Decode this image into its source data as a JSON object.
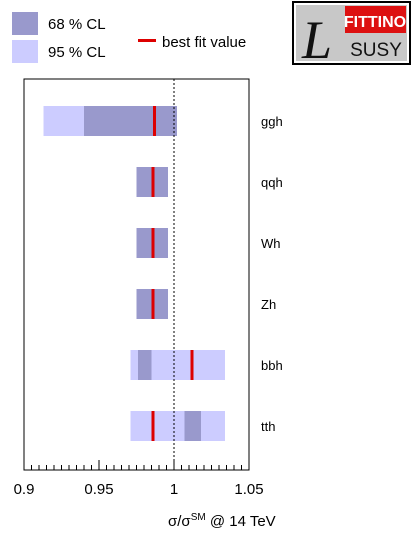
{
  "legend": {
    "cl68_label": "68 % CL",
    "cl95_label": "95 % CL",
    "bestfit_label": "best fit value",
    "position": "top-left, outside plot"
  },
  "logo": {
    "top_text": "FITTINO",
    "bottom_text": "SUSY",
    "letter": "L"
  },
  "axis": {
    "xlabel_sigma": "σ/σ",
    "xlabel_sup": "SM",
    "xlabel_rest": " @ 14 TeV"
  },
  "colors": {
    "cl68": "#9999cc",
    "cl95": "#ccccff",
    "bestfit": "#dd0000",
    "logo_red": "#dd1111",
    "logo_gray": "#c8c8c8"
  },
  "chart_data": {
    "type": "bar",
    "orientation": "horizontal-interval",
    "title": "",
    "xlabel": "σ/σSM @ 14 TeV",
    "ylabel": "",
    "xlim": [
      0.9,
      1.05
    ],
    "xticks": [
      0.9,
      0.95,
      1,
      1.05
    ],
    "xtick_labels": [
      "0.9",
      "0.95",
      "1",
      "1.05"
    ],
    "reference_line": 1.0,
    "grid": false,
    "categories": [
      "ggh",
      "qqh",
      "Wh",
      "Zh",
      "bbh",
      "tth"
    ],
    "series": [
      {
        "name": "68 % CL",
        "intervals": [
          [
            0.94,
            1.002
          ],
          [
            0.975,
            0.996
          ],
          [
            0.975,
            0.996
          ],
          [
            0.975,
            0.996
          ],
          [
            0.976,
            0.985
          ],
          [
            1.007,
            1.018
          ]
        ]
      },
      {
        "name": "95 % CL",
        "intervals": [
          [
            0.913,
            1.002
          ],
          [
            0.975,
            0.996
          ],
          [
            0.975,
            0.996
          ],
          [
            0.975,
            0.996
          ],
          [
            0.971,
            1.034
          ],
          [
            0.971,
            1.034
          ]
        ]
      },
      {
        "name": "best fit value",
        "values": [
          0.987,
          0.986,
          0.986,
          0.986,
          1.012,
          0.986
        ]
      }
    ]
  }
}
